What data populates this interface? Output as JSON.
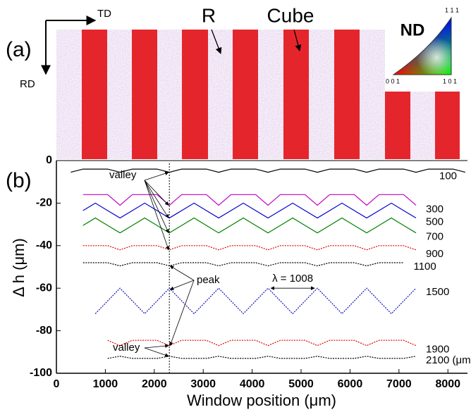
{
  "map": {
    "label": "(a)",
    "td": "TD",
    "rd": "RD",
    "r": "R",
    "cube": "Cube",
    "nd": "ND",
    "pole_111": "1 1 1",
    "pole_001": "0 0 1",
    "pole_101": "1 0 1"
  },
  "chart_data": {
    "type": "line",
    "panel_label": "(b)",
    "xlabel": "Window position (μm)",
    "ylabel": "Δ h (μm)",
    "xlim": [
      0,
      8400
    ],
    "ylim": [
      -100,
      0
    ],
    "xticks": [
      0,
      1000,
      2000,
      3000,
      4000,
      5000,
      6000,
      7000,
      8000
    ],
    "yticks": [
      0,
      -20,
      -40,
      -60,
      -80,
      -100
    ],
    "annotations": [
      "valley",
      "peak",
      "valley",
      "λ = 1008"
    ],
    "x": [
      292,
      544,
      796,
      1048,
      1300,
      1552,
      1804,
      2056,
      2308,
      2560,
      2812,
      3064,
      3316,
      3568,
      3820,
      4072,
      4324,
      4576,
      4828,
      5080,
      5332,
      5584,
      5836,
      6088,
      6340,
      6592,
      6844,
      7096,
      7348,
      7600,
      7852,
      8104,
      8356
    ],
    "series": [
      {
        "name": "100",
        "color": "#000000",
        "dashed": false,
        "values": [
          -5.5,
          -4,
          -4,
          -4,
          -5.5,
          -4,
          -4,
          -4,
          -5.5,
          -4,
          -4,
          -4,
          -5.5,
          -4,
          -4,
          -4,
          -5.5,
          -4,
          -4,
          -4,
          -5.5,
          -4,
          -4,
          -4,
          -5.5,
          -4,
          -4,
          -4,
          -5.5,
          -4,
          -4,
          -4,
          -5.5
        ]
      },
      {
        "name": "300",
        "color": "#c000c0",
        "dashed": false,
        "values": [
          null,
          -16,
          -16,
          -16,
          -21,
          -16,
          -16,
          -16,
          -21,
          -16,
          -16,
          -16,
          -21,
          -16,
          -16,
          -16,
          -21,
          -16,
          -16,
          -16,
          -21,
          -16,
          -16,
          -16,
          -21,
          -16,
          -16,
          -16,
          -21,
          null,
          null,
          null,
          null
        ]
      },
      {
        "name": "500",
        "color": "#0000cc",
        "dashed": false,
        "values": [
          null,
          -23.5,
          -20,
          -23.5,
          -27,
          -23.5,
          -20,
          -23.5,
          -27,
          -23.5,
          -20,
          -23.5,
          -27,
          -23.5,
          -20,
          -23.5,
          -27,
          -23.5,
          -20,
          -23.5,
          -27,
          -23.5,
          -20,
          -23.5,
          -27,
          -23.5,
          -20,
          -23.5,
          -27,
          null,
          null,
          null,
          null
        ]
      },
      {
        "name": "700",
        "color": "#008000",
        "dashed": false,
        "values": [
          null,
          -30.5,
          -27,
          -30.5,
          -34,
          -30.5,
          -27,
          -30.5,
          -34,
          -30.5,
          -27,
          -30.5,
          -34,
          -30.5,
          -27,
          -30.5,
          -34,
          -30.5,
          -27,
          -30.5,
          -34,
          -30.5,
          -27,
          -30.5,
          -34,
          -30.5,
          -27,
          -30.5,
          -34,
          null,
          null,
          null,
          null
        ]
      },
      {
        "name": "900",
        "color": "#dd0000",
        "dashed": true,
        "values": [
          null,
          -40,
          -40,
          -40,
          -42,
          -40,
          -40,
          -40,
          -42,
          -40,
          -40,
          -40,
          -42,
          -40,
          -40,
          -40,
          -42,
          -40,
          -40,
          -40,
          -42,
          -40,
          -40,
          -40,
          -42,
          -40,
          -40,
          -40,
          -42,
          null,
          null,
          null,
          null
        ]
      },
      {
        "name": "1100",
        "color": "#000000",
        "dashed": true,
        "values": [
          null,
          -48,
          -48,
          -48,
          -49.5,
          -48,
          -48,
          -48,
          -49.5,
          -48,
          -48,
          -48,
          -49.5,
          -48,
          -48,
          -48,
          -49.5,
          -48,
          -48,
          -48,
          -49.5,
          -48,
          -48,
          -48,
          -49.5,
          -48,
          -48,
          -48,
          null,
          null,
          null,
          null,
          null
        ]
      },
      {
        "name": "1500",
        "color": "#1010bb",
        "dashed": true,
        "values": [
          null,
          null,
          -72,
          -66,
          -60,
          -66,
          -72,
          -66,
          -60,
          -66,
          -72,
          -66,
          -60,
          -66,
          -72,
          -66,
          -60,
          -66,
          -72,
          -66,
          -60,
          -66,
          -72,
          -66,
          -60,
          -66,
          -72,
          -66,
          -60,
          null,
          null,
          null,
          null
        ]
      },
      {
        "name": "1900",
        "color": "#dd0000",
        "dashed": true,
        "values": [
          null,
          null,
          null,
          -84.5,
          -87,
          -84.5,
          -84.5,
          -84.5,
          -87,
          -84.5,
          -84.5,
          -84.5,
          -87,
          -84.5,
          -84.5,
          -84.5,
          -87,
          -84.5,
          -84.5,
          -84.5,
          -87,
          -84.5,
          -84.5,
          -84.5,
          -87,
          -84.5,
          -84.5,
          -84.5,
          -87,
          null,
          null,
          null,
          null
        ]
      },
      {
        "name": "2100 (μm)",
        "color": "#000000",
        "dashed": true,
        "values": [
          null,
          null,
          null,
          -93,
          -92,
          -93,
          -93,
          -93,
          -92,
          -93,
          -93,
          -93,
          -92,
          -93,
          -93,
          -93,
          -92,
          -93,
          -93,
          -93,
          -92,
          -93,
          -93,
          -93,
          -92,
          -93,
          -93,
          -93,
          -92,
          null,
          null,
          null,
          null
        ]
      }
    ]
  }
}
